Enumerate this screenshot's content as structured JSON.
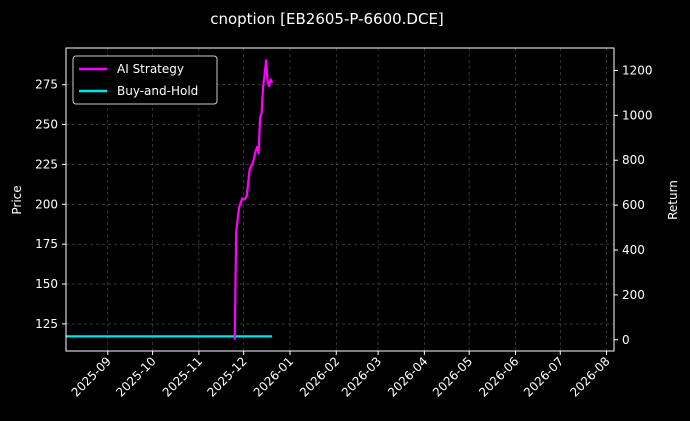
{
  "chart_data": {
    "type": "line",
    "title": "cnoption [EB2605-P-6600.DCE]",
    "xlabel": "",
    "ylabel_left": "Price",
    "ylabel_right": "Return",
    "x_ticks": [
      "2025-09",
      "2025-10",
      "2025-11",
      "2025-12",
      "2026-01",
      "2026-02",
      "2026-03",
      "2026-04",
      "2026-05",
      "2026-06",
      "2026-07",
      "2026-08"
    ],
    "xlim": [
      "2025-08-04",
      "2026-08-06"
    ],
    "ylim_left": [
      108,
      298
    ],
    "yticks_left": [
      125,
      150,
      175,
      200,
      225,
      250,
      275
    ],
    "ylim_right": [
      -50,
      1300
    ],
    "yticks_right": [
      0,
      200,
      400,
      600,
      800,
      1000,
      1200
    ],
    "grid": true,
    "legend_position": "top-left",
    "series": [
      {
        "name": "AI Strategy",
        "axis": "right",
        "color": "#ff00ff",
        "points": [
          [
            "2025-11-25",
            0
          ],
          [
            "2025-11-26",
            480
          ],
          [
            "2025-11-27",
            540
          ],
          [
            "2025-11-28",
            590
          ],
          [
            "2025-11-29",
            610
          ],
          [
            "2025-11-30",
            630
          ],
          [
            "2025-12-01",
            625
          ],
          [
            "2025-12-02",
            628
          ],
          [
            "2025-12-03",
            640
          ],
          [
            "2025-12-04",
            700
          ],
          [
            "2025-12-05",
            760
          ],
          [
            "2025-12-06",
            775
          ],
          [
            "2025-12-07",
            785
          ],
          [
            "2025-12-08",
            810
          ],
          [
            "2025-12-09",
            840
          ],
          [
            "2025-12-10",
            860
          ],
          [
            "2025-12-11",
            830
          ],
          [
            "2025-12-12",
            990
          ],
          [
            "2025-12-13",
            1010
          ],
          [
            "2025-12-14",
            1130
          ],
          [
            "2025-12-15",
            1180
          ],
          [
            "2025-12-16",
            1245
          ],
          [
            "2025-12-17",
            1150
          ],
          [
            "2025-12-18",
            1130
          ],
          [
            "2025-12-19",
            1160
          ],
          [
            "2025-12-20",
            1145
          ]
        ]
      },
      {
        "name": "Buy-and-Hold",
        "axis": "right",
        "color": "#00e5ee",
        "points": [
          [
            "2025-08-04",
            15
          ],
          [
            "2025-12-20",
            15
          ]
        ]
      }
    ]
  }
}
